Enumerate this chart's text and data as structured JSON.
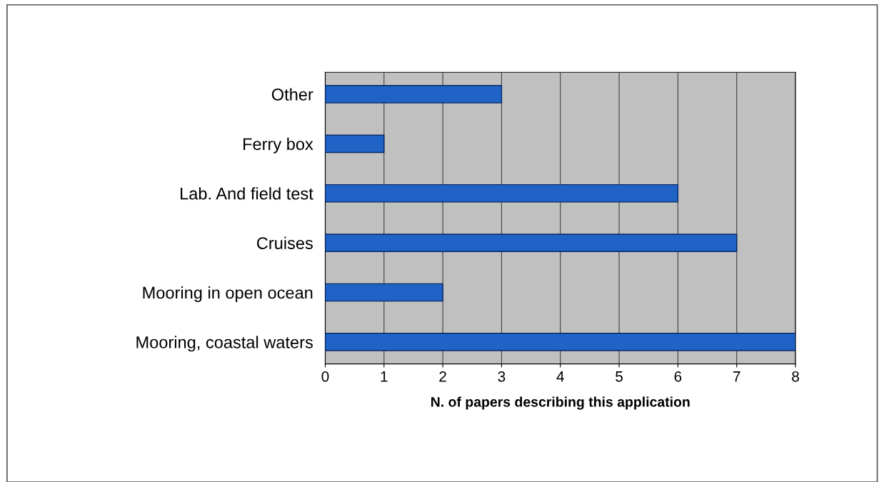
{
  "chart_data": {
    "type": "bar",
    "orientation": "horizontal",
    "xlabel": "N. of papers describing this application",
    "categories": [
      "Other",
      "Ferry box",
      "Lab. And field test",
      "Cruises",
      "Mooring in open ocean",
      "Mooring, coastal waters"
    ],
    "values": [
      3,
      1,
      6,
      7,
      2,
      8
    ],
    "color": "#1f63c6",
    "xlim": [
      0,
      8
    ],
    "xticks": [
      0,
      1,
      2,
      3,
      4,
      5,
      6,
      7,
      8
    ],
    "grid": "x"
  }
}
